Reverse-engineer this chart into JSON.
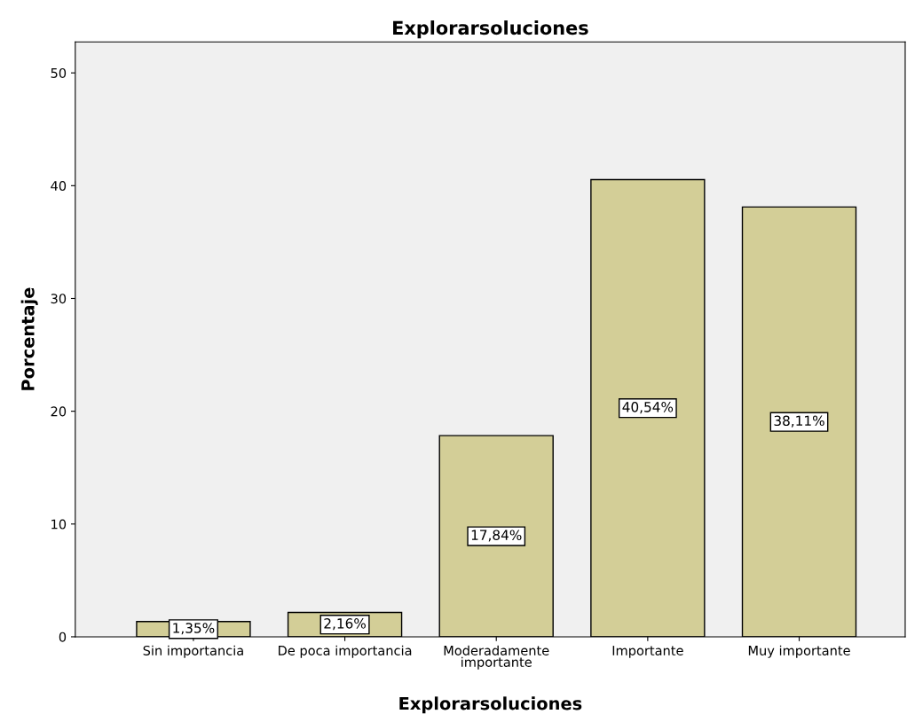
{
  "chart_data": {
    "type": "bar",
    "title": "Explorarsoluciones",
    "xlabel": "Explorarsoluciones",
    "ylabel": "Porcentaje",
    "categories": [
      "Sin importancia",
      "De poca importancia",
      "Moderadamente\nimportante",
      "Importante",
      "Muy importante"
    ],
    "values": [
      1.35,
      2.16,
      17.84,
      40.54,
      38.11
    ],
    "value_labels": [
      "1,35%",
      "2,16%",
      "17,84%",
      "40,54%",
      "38,11%"
    ],
    "color": "#d3ce97",
    "ylim": [
      0,
      52.75
    ],
    "yticks": [
      0,
      10,
      20,
      30,
      40,
      50
    ],
    "grid": false
  }
}
